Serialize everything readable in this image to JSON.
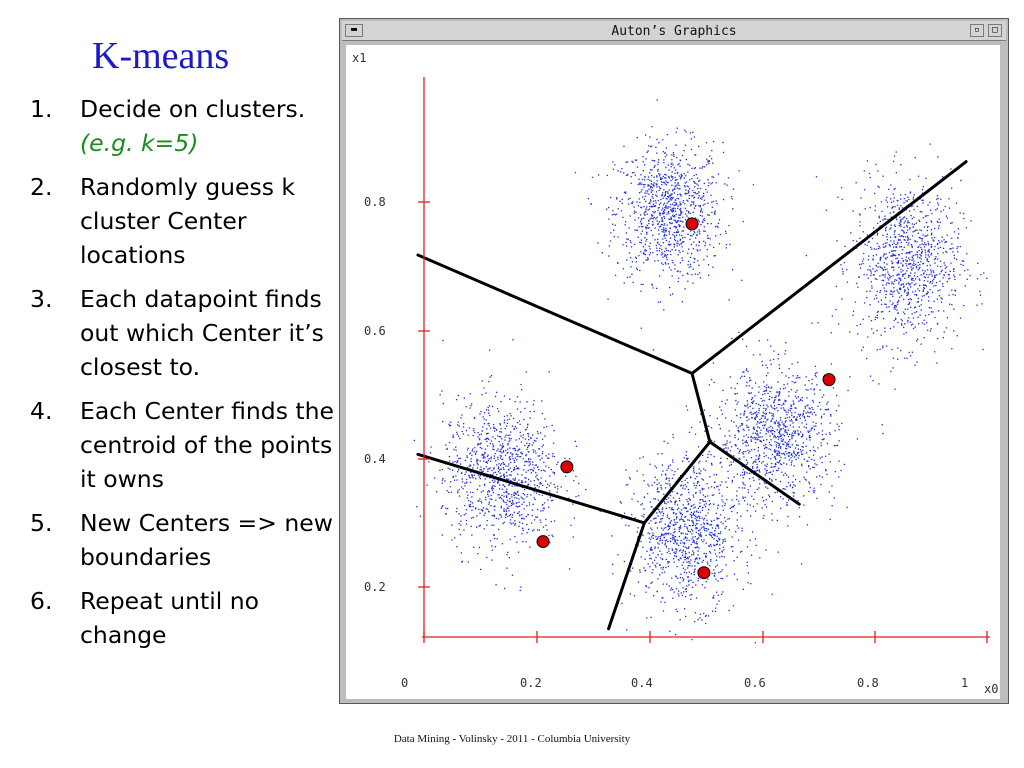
{
  "slide": {
    "title": "K-means",
    "steps": [
      {
        "num": "1.",
        "text": "Decide on clusters.",
        "note": "(e.g. k=5)"
      },
      {
        "num": "2.",
        "text": "Randomly guess k cluster Center locations"
      },
      {
        "num": "3.",
        "text": "Each datapoint finds out which Center it’s closest to."
      },
      {
        "num": "4.",
        "text": "Each Center finds the centroid of the points it owns"
      },
      {
        "num": "5.",
        "text": "New Centers => new boundaries"
      },
      {
        "num": "6.",
        "text": "Repeat until no change"
      }
    ],
    "footer": "Data Mining - Volinsky - 2011 -  Columbia University"
  },
  "window": {
    "title": "Auton’s Graphics",
    "menu_glyph": "▬",
    "minimize_glyph": "▫",
    "maximize_glyph": "□"
  },
  "colors": {
    "title": "#1a1acc",
    "note": "#1a8c1a",
    "axis": "#e02020",
    "points": "#1f2fd6",
    "centers": "#dd0000",
    "boundaries": "#000000"
  },
  "chart_data": {
    "type": "scatter",
    "xlabel": "x0",
    "ylabel": "x1",
    "xlim": [
      0,
      1.05
    ],
    "ylim": [
      0.1,
      0.95
    ],
    "x_ticks": [
      0,
      0.2,
      0.4,
      0.6,
      0.8,
      1
    ],
    "x_tick_labels": [
      "0",
      "0.2",
      "0.4",
      "0.6",
      "0.8",
      "1"
    ],
    "y_ticks": [
      0.2,
      0.4,
      0.6,
      0.8
    ],
    "y_tick_labels": [
      "0.2",
      "0.4",
      "0.6",
      "0.8"
    ],
    "grid": false,
    "clusters": [
      {
        "center": [
          0.48,
          0.78
        ],
        "spread": [
          0.045,
          0.055
        ],
        "count": 1000
      },
      {
        "center": [
          0.88,
          0.7
        ],
        "spread": [
          0.045,
          0.065
        ],
        "count": 1000
      },
      {
        "center": [
          0.2,
          0.36
        ],
        "spread": [
          0.05,
          0.06
        ],
        "count": 1000
      },
      {
        "center": [
          0.51,
          0.27
        ],
        "spread": [
          0.045,
          0.06
        ],
        "count": 1000
      },
      {
        "center": [
          0.66,
          0.42
        ],
        "spread": [
          0.05,
          0.055
        ],
        "count": 1000
      }
    ],
    "centers": [
      {
        "x": 0.52,
        "y": 0.76
      },
      {
        "x": 0.75,
        "y": 0.51
      },
      {
        "x": 0.31,
        "y": 0.37
      },
      {
        "x": 0.27,
        "y": 0.25
      },
      {
        "x": 0.54,
        "y": 0.2
      }
    ],
    "boundaries": [
      [
        [
          0.06,
          0.71
        ],
        [
          0.52,
          0.52
        ]
      ],
      [
        [
          0.52,
          0.52
        ],
        [
          0.98,
          0.86
        ]
      ],
      [
        [
          0.52,
          0.52
        ],
        [
          0.55,
          0.41
        ]
      ],
      [
        [
          0.55,
          0.41
        ],
        [
          0.7,
          0.31
        ]
      ],
      [
        [
          0.55,
          0.41
        ],
        [
          0.44,
          0.28
        ]
      ],
      [
        [
          0.44,
          0.28
        ],
        [
          0.06,
          0.39
        ]
      ],
      [
        [
          0.44,
          0.28
        ],
        [
          0.38,
          0.11
        ]
      ]
    ]
  }
}
